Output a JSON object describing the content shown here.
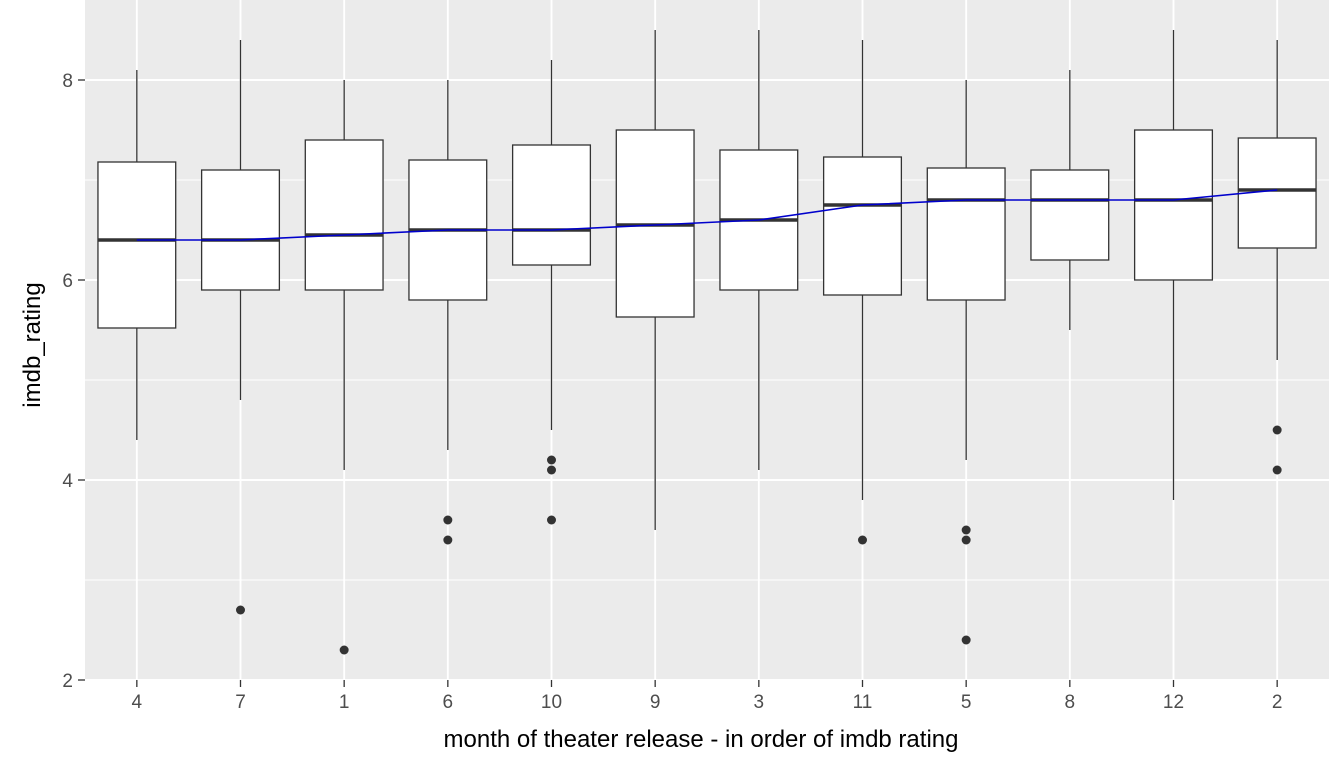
{
  "chart_data": {
    "type": "box",
    "title": "",
    "xlabel": "month of theater release - in order of imdb rating",
    "ylabel": "imdb_rating",
    "ylim": [
      2,
      8.8
    ],
    "yticks": [
      2,
      4,
      6,
      8
    ],
    "grid": true,
    "categories": [
      "4",
      "7",
      "1",
      "6",
      "10",
      "9",
      "3",
      "11",
      "5",
      "8",
      "12",
      "2"
    ],
    "boxes": [
      {
        "category": "4",
        "whisker_low": 4.4,
        "q1": 5.52,
        "median": 6.4,
        "q3": 7.18,
        "whisker_high": 8.1,
        "outliers": []
      },
      {
        "category": "7",
        "whisker_low": 4.8,
        "q1": 5.9,
        "median": 6.4,
        "q3": 7.1,
        "whisker_high": 8.4,
        "outliers": [
          2.7
        ]
      },
      {
        "category": "1",
        "whisker_low": 4.1,
        "q1": 5.9,
        "median": 6.45,
        "q3": 7.4,
        "whisker_high": 8.0,
        "outliers": [
          2.3
        ]
      },
      {
        "category": "6",
        "whisker_low": 4.3,
        "q1": 5.8,
        "median": 6.5,
        "q3": 7.2,
        "whisker_high": 8.0,
        "outliers": [
          3.6,
          3.4
        ]
      },
      {
        "category": "10",
        "whisker_low": 4.5,
        "q1": 6.15,
        "median": 6.5,
        "q3": 7.35,
        "whisker_high": 8.2,
        "outliers": [
          4.2,
          4.1,
          3.6
        ]
      },
      {
        "category": "9",
        "whisker_low": 3.5,
        "q1": 5.63,
        "median": 6.55,
        "q3": 7.5,
        "whisker_high": 8.5,
        "outliers": []
      },
      {
        "category": "3",
        "whisker_low": 4.1,
        "q1": 5.9,
        "median": 6.6,
        "q3": 7.3,
        "whisker_high": 8.5,
        "outliers": []
      },
      {
        "category": "11",
        "whisker_low": 3.8,
        "q1": 5.85,
        "median": 6.75,
        "q3": 7.23,
        "whisker_high": 8.4,
        "outliers": [
          3.4
        ]
      },
      {
        "category": "5",
        "whisker_low": 4.2,
        "q1": 5.8,
        "median": 6.8,
        "q3": 7.12,
        "whisker_high": 8.0,
        "outliers": [
          3.5,
          3.4,
          2.4
        ]
      },
      {
        "category": "8",
        "whisker_low": 5.5,
        "q1": 6.2,
        "median": 6.8,
        "q3": 7.1,
        "whisker_high": 8.1,
        "outliers": []
      },
      {
        "category": "12",
        "whisker_low": 3.8,
        "q1": 6.0,
        "median": 6.8,
        "q3": 7.5,
        "whisker_high": 8.5,
        "outliers": []
      },
      {
        "category": "2",
        "whisker_low": 5.2,
        "q1": 6.32,
        "median": 6.9,
        "q3": 7.42,
        "whisker_high": 8.4,
        "outliers": [
          4.5,
          4.1
        ]
      }
    ],
    "median_line": {
      "color": "#0000cc"
    },
    "colors": {
      "panel": "#ebebeb",
      "grid": "#ffffff",
      "box_fill": "#ffffff",
      "box_stroke": "#333333",
      "tick_text": "#4d4d4d"
    }
  }
}
